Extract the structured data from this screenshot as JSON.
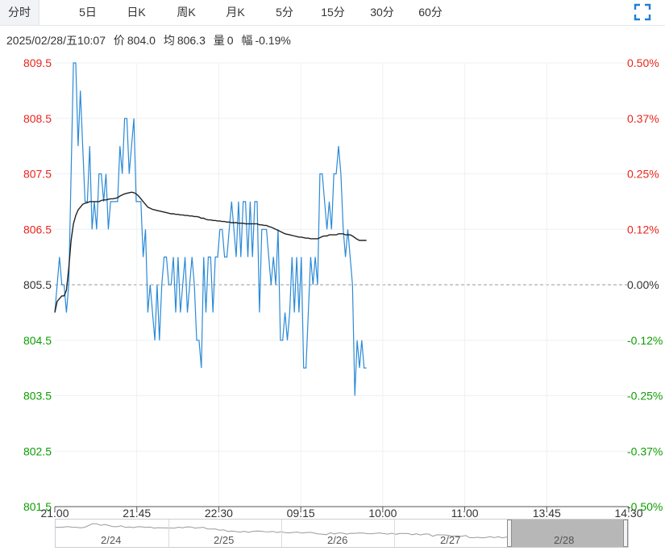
{
  "tabs": [
    {
      "label": "分时",
      "active": true
    },
    {
      "label": "5日"
    },
    {
      "label": "日K"
    },
    {
      "label": "周K"
    },
    {
      "label": "月K"
    },
    {
      "label": "5分"
    },
    {
      "label": "15分"
    },
    {
      "label": "30分"
    },
    {
      "label": "60分"
    }
  ],
  "fullscreen_icon": "expand-corners-icon",
  "info": {
    "datetime": "2025/02/28/五10:07",
    "price_label": "价",
    "price": "804.0",
    "avg_label": "均",
    "avg": "806.3",
    "vol_label": "量",
    "vol": "0",
    "chg_label": "幅",
    "chg": "-0.19%"
  },
  "chart_data": {
    "type": "line",
    "x_ticks": [
      "21:00",
      "21:45",
      "22:30",
      "09:15",
      "10:00",
      "11:00",
      "13:45",
      "14:30"
    ],
    "y_ticks": [
      "809.5",
      "808.5",
      "807.5",
      "806.5",
      "805.5",
      "804.5",
      "803.5",
      "802.5",
      "801.5"
    ],
    "y_pct_ticks": [
      "0.50%",
      "0.37%",
      "0.25%",
      "0.12%",
      "0.00%",
      "-0.12%",
      "-0.25%",
      "-0.37%",
      "-0.50%"
    ],
    "ylim": [
      801.5,
      809.5
    ],
    "baseline": 805.5,
    "colors": {
      "up": "#e8251c",
      "down": "#0d9e00",
      "flat": "#333333",
      "price_line": "#2b8ad6",
      "avg_line": "#222222",
      "grid": "#eef0f3"
    },
    "series": [
      {
        "values": [
          805.0,
          805.5,
          806.0,
          805.5,
          805.5,
          805.0,
          805.5,
          807.5,
          809.5,
          809.5,
          808.0,
          809.0,
          808.0,
          807.0,
          807.0,
          808.0,
          806.5,
          807.0,
          806.5,
          807.5,
          807.5,
          807.0,
          807.5,
          806.5,
          807.0,
          807.0,
          807.0,
          807.0,
          808.0,
          807.5,
          808.5,
          808.5,
          807.5,
          808.0,
          808.5,
          807.0,
          807.0,
          807.0,
          806.0,
          806.5,
          805.0,
          805.5,
          805.0,
          804.5,
          805.5,
          804.5,
          805.5,
          806.0,
          806.0,
          805.5,
          805.5,
          806.0,
          805.0,
          806.0,
          805.0,
          805.5,
          806.0,
          805.0,
          805.5,
          806.0,
          805.5,
          804.5,
          804.5,
          804.0,
          806.0,
          805.0,
          806.0,
          806.0,
          805.0,
          806.0,
          806.0,
          806.5,
          806.5,
          806.0,
          806.0,
          806.5,
          807.0,
          806.5,
          806.0,
          807.0,
          806.0,
          807.0,
          807.0,
          806.0,
          807.0,
          806.0,
          807.0,
          807.0,
          805.0,
          806.5,
          806.5,
          806.5,
          806.0,
          805.5,
          806.0,
          805.5,
          806.5,
          804.5,
          804.5,
          805.0,
          804.5,
          805.0,
          806.0,
          805.0,
          806.0,
          805.0,
          806.0,
          804.0,
          804.0,
          805.0,
          806.0,
          805.5,
          806.0,
          805.5,
          807.5,
          807.5,
          807.0,
          806.5,
          807.0,
          806.5,
          807.5,
          807.5,
          808.0,
          807.5,
          806.5,
          806.0,
          806.5,
          806.0,
          805.5,
          803.5,
          804.5,
          804.0,
          804.5,
          804.0,
          804.0
        ],
        "color": "#2b8ad6"
      },
      {
        "values": [
          805.0,
          805.2,
          805.25,
          805.3,
          805.3,
          805.4,
          805.8,
          806.3,
          806.6,
          806.75,
          806.85,
          806.9,
          806.95,
          806.97,
          806.98,
          807.0,
          807.0,
          807.0,
          807.0,
          807.0,
          807.02,
          807.03,
          807.03,
          807.04,
          807.05,
          807.05,
          807.06,
          807.07,
          807.1,
          807.12,
          807.14,
          807.15,
          807.16,
          807.17,
          807.16,
          807.14,
          807.1,
          807.05,
          807.0,
          806.95,
          806.9,
          806.88,
          806.86,
          806.85,
          806.84,
          806.83,
          806.82,
          806.81,
          806.8,
          806.79,
          806.78,
          806.78,
          806.77,
          806.77,
          806.76,
          806.76,
          806.75,
          806.75,
          806.74,
          806.74,
          806.73,
          806.73,
          806.72,
          806.7,
          806.7,
          806.68,
          806.67,
          806.67,
          806.66,
          806.66,
          806.65,
          806.65,
          806.64,
          806.64,
          806.63,
          806.63,
          806.62,
          806.62,
          806.62,
          806.61,
          806.61,
          806.61,
          806.6,
          806.6,
          806.6,
          806.6,
          806.6,
          806.6,
          806.58,
          806.58,
          806.57,
          806.57,
          806.55,
          806.54,
          806.52,
          806.5,
          806.48,
          806.46,
          806.44,
          806.42,
          806.41,
          806.4,
          806.39,
          806.38,
          806.37,
          806.36,
          806.36,
          806.35,
          806.34,
          806.34,
          806.33,
          806.33,
          806.33,
          806.33,
          806.35,
          806.37,
          806.38,
          806.38,
          806.4,
          806.4,
          806.4,
          806.4,
          806.42,
          806.42,
          806.42,
          806.4,
          806.4,
          806.4,
          806.38,
          806.35,
          806.32,
          806.3,
          806.3,
          806.3,
          806.3
        ],
        "color": "#222222"
      }
    ]
  },
  "navigator": {
    "labels": [
      "2/24",
      "2/25",
      "2/26",
      "2/27",
      "2/28"
    ]
  }
}
